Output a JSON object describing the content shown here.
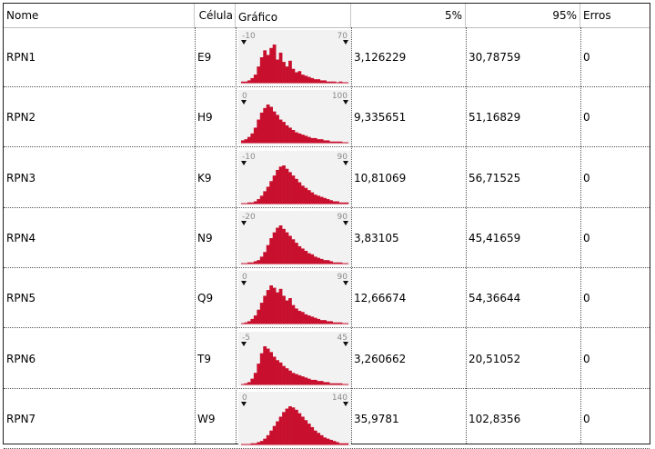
{
  "header": {
    "nome": "Nome",
    "celula": "Célula",
    "grafico": "Gráfico",
    "p5": "5%",
    "p95": "95%",
    "erros": "Erros"
  },
  "colors": {
    "bar": "#c8102e",
    "chart_bg": "#f2f2f2",
    "marker": "#111111"
  },
  "rows": [
    {
      "nome": "RPN1",
      "celula": "E9",
      "min_label": "-10",
      "max_label": "70",
      "p5": "3,126229",
      "p95": "30,78759",
      "erros": "0",
      "histogram": [
        1,
        1,
        2,
        4,
        7,
        14,
        22,
        28,
        24,
        30,
        33,
        20,
        26,
        18,
        14,
        19,
        12,
        9,
        10,
        7,
        6,
        5,
        4,
        3,
        3,
        2,
        2,
        1,
        1,
        1,
        0,
        1,
        0,
        0
      ]
    },
    {
      "nome": "RPN2",
      "celula": "H9",
      "min_label": "0",
      "max_label": "100",
      "p5": "9,335651",
      "p95": "51,16829",
      "erros": "0",
      "histogram": [
        2,
        3,
        5,
        8,
        13,
        20,
        26,
        30,
        33,
        31,
        27,
        24,
        20,
        18,
        15,
        13,
        11,
        9,
        8,
        7,
        6,
        5,
        4,
        4,
        3,
        3,
        2,
        2,
        1,
        1,
        1,
        1,
        0,
        0
      ]
    },
    {
      "nome": "RPN3",
      "celula": "K9",
      "min_label": "-10",
      "max_label": "90",
      "p5": "10,81069",
      "p95": "56,71525",
      "erros": "0",
      "histogram": [
        0,
        0,
        1,
        1,
        2,
        4,
        7,
        11,
        15,
        20,
        25,
        30,
        33,
        34,
        31,
        28,
        25,
        22,
        19,
        16,
        14,
        12,
        10,
        8,
        7,
        6,
        5,
        4,
        3,
        2,
        2,
        1,
        1,
        1
      ]
    },
    {
      "nome": "RPN4",
      "celula": "N9",
      "min_label": "-20",
      "max_label": "90",
      "p5": "3,83105",
      "p95": "45,41659",
      "erros": "0",
      "histogram": [
        0,
        0,
        1,
        1,
        2,
        3,
        6,
        10,
        16,
        22,
        27,
        31,
        33,
        30,
        27,
        24,
        21,
        18,
        15,
        13,
        11,
        9,
        8,
        6,
        5,
        4,
        3,
        3,
        2,
        1,
        1,
        1,
        0,
        0
      ]
    },
    {
      "nome": "RPN5",
      "celula": "Q9",
      "min_label": "0",
      "max_label": "90",
      "p5": "12,66674",
      "p95": "54,36644",
      "erros": "0",
      "histogram": [
        0,
        1,
        2,
        4,
        7,
        12,
        18,
        24,
        29,
        33,
        31,
        27,
        30,
        24,
        20,
        22,
        16,
        13,
        11,
        10,
        8,
        7,
        6,
        5,
        4,
        3,
        3,
        2,
        2,
        1,
        1,
        1,
        0,
        0
      ]
    },
    {
      "nome": "RPN6",
      "celula": "T9",
      "min_label": "-5",
      "max_label": "45",
      "p5": "3,260662",
      "p95": "20,51052",
      "erros": "0",
      "histogram": [
        0,
        1,
        2,
        5,
        10,
        18,
        27,
        33,
        31,
        28,
        24,
        21,
        19,
        16,
        14,
        12,
        10,
        9,
        8,
        7,
        6,
        5,
        4,
        4,
        3,
        3,
        2,
        2,
        1,
        1,
        1,
        1,
        0,
        0
      ]
    },
    {
      "nome": "RPN7",
      "celula": "W9",
      "min_label": "0",
      "max_label": "140",
      "p5": "35,9781",
      "p95": "102,8356",
      "erros": "0",
      "histogram": [
        0,
        0,
        0,
        1,
        1,
        2,
        3,
        5,
        8,
        12,
        16,
        20,
        24,
        28,
        31,
        33,
        32,
        30,
        27,
        24,
        21,
        18,
        15,
        12,
        10,
        8,
        6,
        5,
        4,
        3,
        2,
        1,
        1,
        1
      ]
    }
  ]
}
